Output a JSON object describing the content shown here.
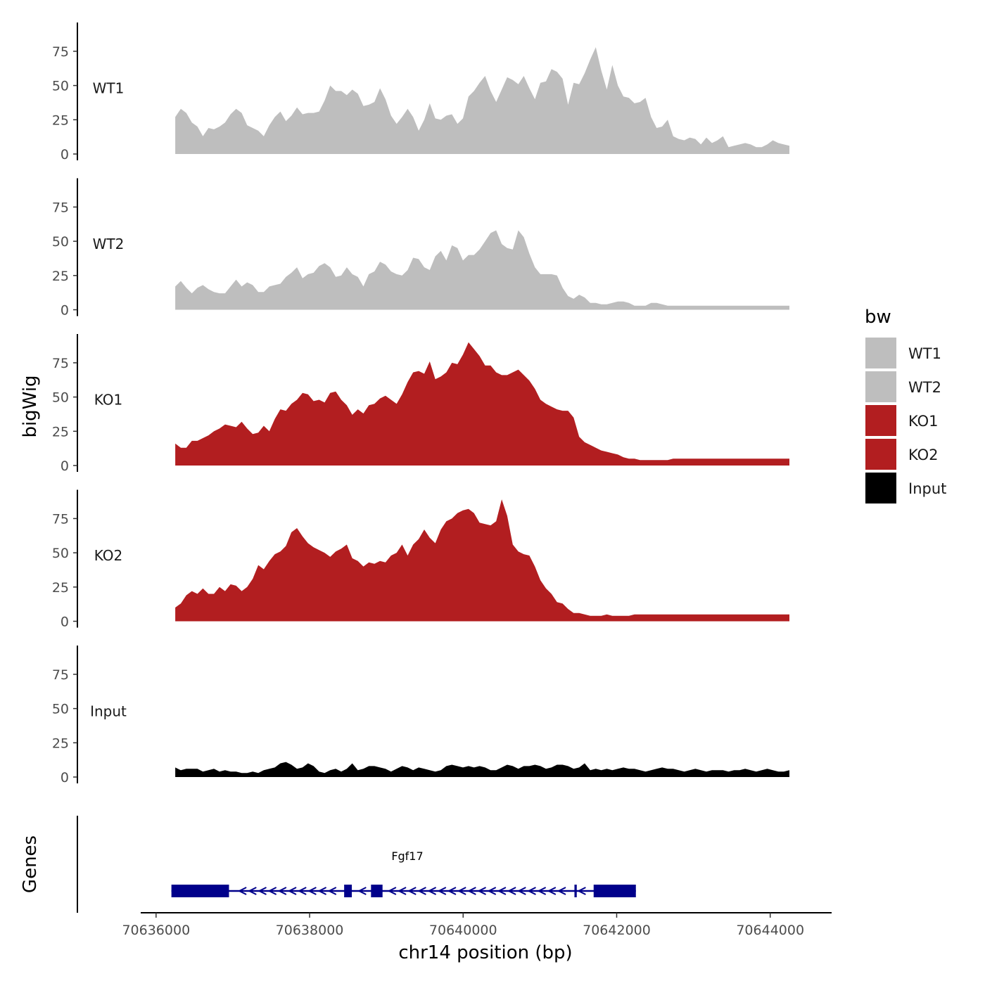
{
  "chart_data": {
    "type": "area",
    "title": "",
    "xlabel": "chr14 position (bp)",
    "ylabel": "bigWig",
    "genes_label": "Genes",
    "x_range": [
      70635800,
      70644800
    ],
    "x_ticks": [
      70636000,
      70638000,
      70640000,
      70642000,
      70644000
    ],
    "x_tick_labels": [
      "70636000",
      "70638000",
      "70640000",
      "70642000",
      "70644000"
    ],
    "signal_x_start": 70636250,
    "signal_x_end": 70644250,
    "y_range": [
      0,
      96
    ],
    "y_ticks": [
      0,
      25,
      50,
      75
    ],
    "y_tick_labels": [
      "0",
      "25",
      "50",
      "75"
    ],
    "legend_title": "bw",
    "series": [
      {
        "name": "WT1",
        "color": "#bebebe",
        "profile": [
          27,
          33,
          30,
          23,
          20,
          13,
          19,
          18,
          20,
          23,
          29,
          33,
          30,
          21,
          19,
          17,
          13,
          21,
          27,
          31,
          24,
          28,
          34,
          29,
          30,
          30,
          31,
          39,
          50,
          46,
          46,
          43,
          47,
          44,
          35,
          36,
          38,
          48,
          40,
          28,
          22,
          27,
          33,
          27,
          17,
          25,
          37,
          26,
          25,
          28,
          29,
          22,
          26,
          42,
          46,
          52,
          57,
          46,
          38,
          47,
          56,
          54,
          51,
          57,
          48,
          40,
          52,
          53,
          62,
          60,
          55,
          36,
          52,
          51,
          59,
          69,
          78,
          61,
          47,
          65,
          50,
          42,
          41,
          37,
          38,
          41,
          27,
          19,
          20,
          25,
          13,
          11,
          10,
          12,
          11,
          7,
          12,
          8,
          10,
          13,
          5,
          6,
          7,
          8,
          7,
          5,
          5,
          7,
          10,
          8,
          7,
          6
        ]
      },
      {
        "name": "WT2",
        "color": "#bebebe",
        "profile": [
          17,
          21,
          16,
          12,
          16,
          18,
          15,
          13,
          12,
          12,
          17,
          22,
          17,
          20,
          18,
          13,
          13,
          17,
          18,
          19,
          24,
          27,
          31,
          23,
          26,
          27,
          32,
          34,
          31,
          24,
          25,
          31,
          26,
          24,
          17,
          26,
          28,
          35,
          33,
          28,
          26,
          25,
          29,
          38,
          37,
          31,
          29,
          39,
          43,
          36,
          47,
          45,
          36,
          40,
          40,
          44,
          50,
          56,
          58,
          48,
          45,
          44,
          58,
          53,
          41,
          31,
          26,
          26,
          26,
          25,
          16,
          10,
          8,
          11,
          9,
          5,
          5,
          4,
          4,
          5,
          6,
          6,
          5,
          3,
          3,
          3,
          5,
          5,
          4,
          3,
          3,
          3,
          3,
          3,
          3,
          3,
          3,
          3,
          3,
          3,
          3,
          3,
          3,
          3,
          3,
          3,
          3,
          3,
          3,
          3,
          3,
          3
        ]
      },
      {
        "name": "KO1",
        "color": "#b21e20",
        "profile": [
          16,
          13,
          13,
          18,
          18,
          20,
          22,
          25,
          27,
          30,
          29,
          28,
          32,
          27,
          23,
          24,
          29,
          25,
          34,
          41,
          40,
          45,
          48,
          53,
          52,
          47,
          48,
          46,
          53,
          54,
          48,
          44,
          37,
          41,
          38,
          44,
          45,
          49,
          51,
          48,
          45,
          52,
          61,
          68,
          69,
          67,
          76,
          63,
          65,
          68,
          75,
          74,
          81,
          90,
          85,
          80,
          73,
          73,
          68,
          66,
          66,
          68,
          70,
          66,
          62,
          56,
          48,
          45,
          43,
          41,
          40,
          40,
          35,
          21,
          17,
          15,
          13,
          11,
          10,
          9,
          8,
          6,
          5,
          5,
          4,
          4,
          4,
          4,
          4,
          4,
          5,
          5,
          5,
          5,
          5,
          5,
          5,
          5,
          5,
          5,
          5,
          5,
          5,
          5,
          5,
          5,
          5,
          5,
          5,
          5,
          5,
          5
        ]
      },
      {
        "name": "KO2",
        "color": "#b21e20",
        "profile": [
          10,
          13,
          19,
          22,
          20,
          24,
          20,
          20,
          25,
          22,
          27,
          26,
          22,
          25,
          31,
          41,
          38,
          44,
          49,
          51,
          55,
          65,
          68,
          62,
          57,
          54,
          52,
          50,
          47,
          51,
          53,
          56,
          46,
          44,
          40,
          43,
          42,
          44,
          43,
          48,
          50,
          56,
          48,
          56,
          60,
          67,
          61,
          57,
          67,
          73,
          75,
          79,
          81,
          82,
          79,
          72,
          71,
          70,
          73,
          89,
          77,
          56,
          51,
          49,
          48,
          40,
          30,
          24,
          20,
          14,
          13,
          9,
          6,
          6,
          5,
          4,
          4,
          4,
          5,
          4,
          4,
          4,
          4,
          5,
          5,
          5,
          5,
          5,
          5,
          5,
          5,
          5,
          5,
          5,
          5,
          5,
          5,
          5,
          5,
          5,
          5,
          5,
          5,
          5,
          5,
          5,
          5,
          5,
          5,
          5,
          5,
          5
        ]
      },
      {
        "name": "Input",
        "color": "#000000",
        "profile": [
          7,
          5,
          6,
          6,
          6,
          4,
          5,
          6,
          4,
          5,
          4,
          4,
          3,
          3,
          4,
          3,
          5,
          6,
          7,
          10,
          11,
          9,
          6,
          7,
          10,
          8,
          4,
          3,
          5,
          6,
          4,
          6,
          10,
          5,
          6,
          8,
          8,
          7,
          6,
          4,
          6,
          8,
          7,
          5,
          7,
          6,
          5,
          4,
          5,
          8,
          9,
          8,
          7,
          8,
          7,
          8,
          7,
          5,
          5,
          7,
          9,
          8,
          6,
          8,
          8,
          9,
          8,
          6,
          7,
          9,
          9,
          8,
          6,
          7,
          10,
          5,
          6,
          5,
          6,
          5,
          6,
          7,
          6,
          6,
          5,
          4,
          5,
          6,
          7,
          6,
          6,
          5,
          4,
          5,
          6,
          5,
          4,
          5,
          5,
          5,
          4,
          5,
          5,
          6,
          5,
          4,
          5,
          6,
          5,
          4,
          4,
          5
        ]
      }
    ],
    "gene": {
      "name": "Fgf17",
      "start": 70636200,
      "end": 70642250,
      "strand": "-",
      "exons": [
        [
          70636200,
          70636950
        ],
        [
          70638450,
          70638550
        ],
        [
          70638800,
          70638950
        ],
        [
          70641450,
          70641480
        ],
        [
          70641700,
          70642250
        ]
      ],
      "color": "#00008b"
    }
  }
}
